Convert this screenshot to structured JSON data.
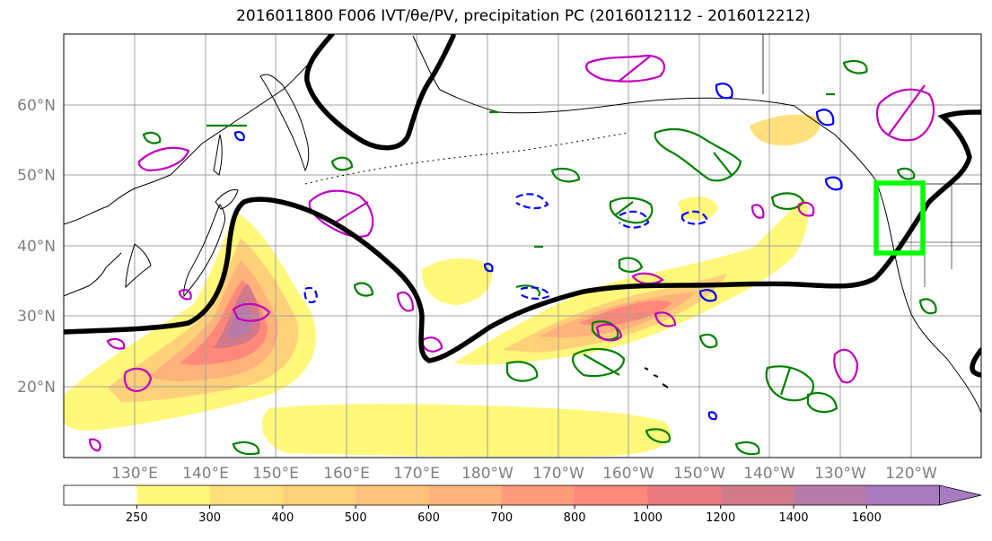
{
  "title": "2016011800 F006 IVT/θe/PV, precipitation PC (2016012112 - 2016012212)",
  "lat_labels": [
    "60°N",
    "50°N",
    "40°N",
    "30°N",
    "20°N"
  ],
  "lon_labels": [
    "130°E",
    "140°E",
    "150°E",
    "160°E",
    "170°E",
    "180°W",
    "170°W",
    "160°W",
    "150°W",
    "140°W",
    "130°W",
    "120°W"
  ],
  "colorbar": {
    "ticks": [
      "250",
      "300",
      "400",
      "500",
      "600",
      "700",
      "800",
      "1000",
      "1200",
      "1400",
      "1600"
    ],
    "colors": [
      "#ffffff",
      "#fff87a",
      "#ffe07a",
      "#ffd07a",
      "#ffc27a",
      "#ffb27a",
      "#ff9a7a",
      "#ff887a",
      "#ea7a80",
      "#d27a8a",
      "#b87aa8",
      "#a87ac0"
    ],
    "extend": "max"
  },
  "colors": {
    "precip_contour": "#008000",
    "pv_positive": "#c000c0",
    "pv_negative": "#0000ff",
    "theta_e_line": "#000000",
    "target_box": "#00ff00"
  }
}
